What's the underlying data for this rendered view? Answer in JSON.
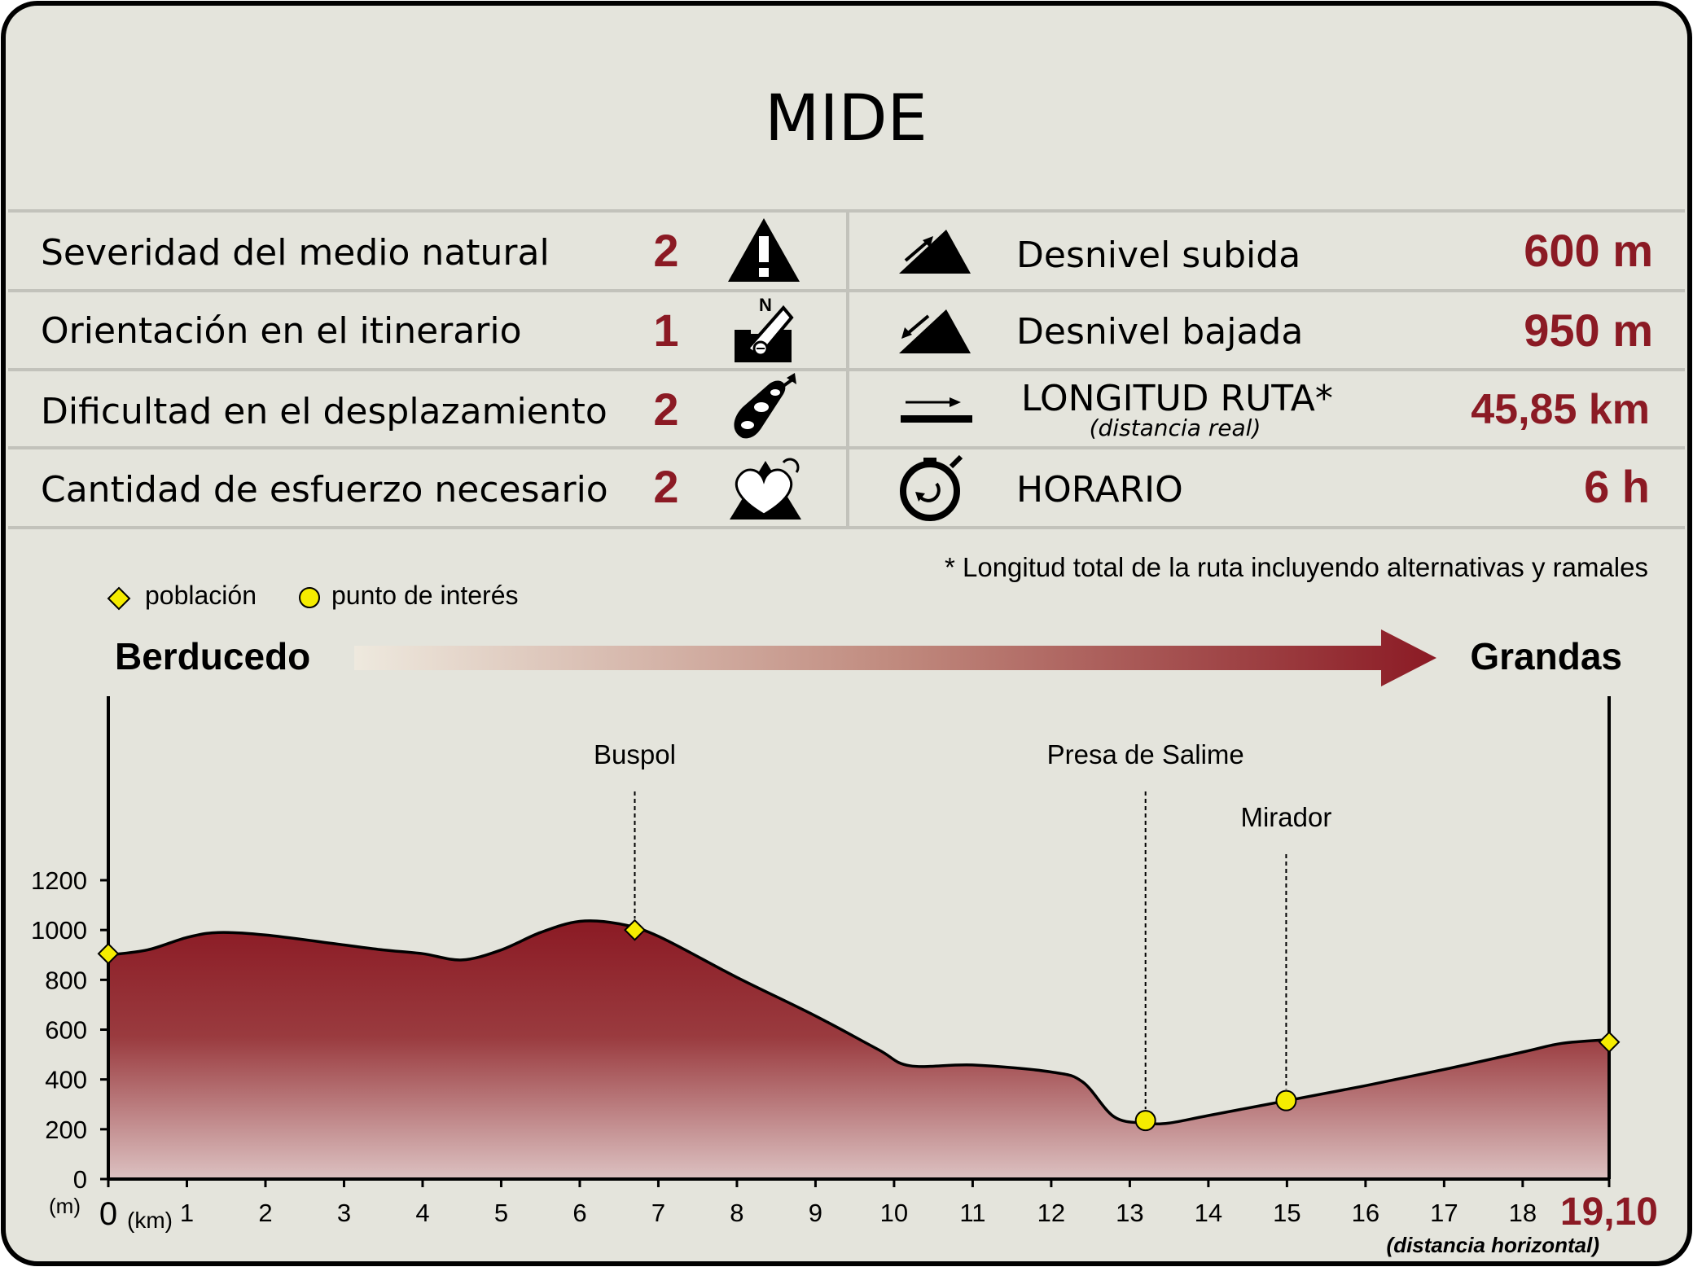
{
  "title": "MIDE",
  "mide_rows": [
    {
      "label": "Severidad del medio natural",
      "value": "2",
      "icon": "warning-icon"
    },
    {
      "label": "Orientación en el itinerario",
      "value": "1",
      "icon": "compass-icon"
    },
    {
      "label": "Dificultad en el desplazamiento",
      "value": "2",
      "icon": "footprint-icon"
    },
    {
      "label": "Cantidad de esfuerzo necesario",
      "value": "2",
      "icon": "heart-effort-icon"
    }
  ],
  "route_rows": [
    {
      "label": "Desnivel subida",
      "sublabel": "",
      "value": "600 m",
      "icon": "ascent-icon"
    },
    {
      "label": "Desnivel bajada",
      "sublabel": "",
      "value": "950 m",
      "icon": "descent-icon"
    },
    {
      "label": "LONGITUD RUTA*",
      "sublabel": "(distancia real)",
      "value": "45,85 km",
      "icon": "distance-icon"
    },
    {
      "label": "HORARIO",
      "sublabel": "",
      "value": "6 h",
      "icon": "stopwatch-icon"
    }
  ],
  "footnote": "* Longitud total de la ruta incluyendo alternativas y ramales",
  "legend": [
    {
      "label": "población",
      "marker": "diamond"
    },
    {
      "label": "punto de interés",
      "marker": "circle"
    }
  ],
  "route": {
    "start": "Berducedo",
    "end": "Grandas"
  },
  "colors": {
    "background": "#e4e4dc",
    "accent": "#8b1a24",
    "profile_top": "#8b1a24",
    "profile_bottom": "#dcc1c1",
    "marker": "#f5ec00",
    "divider": "#c2c2bb"
  },
  "chart_data": {
    "type": "area",
    "xlabel": "(km)",
    "ylabel": "(m)",
    "xlim": [
      0,
      19.1
    ],
    "ylim": [
      0,
      1200
    ],
    "x_ticks": [
      "0",
      "1",
      "2",
      "3",
      "4",
      "5",
      "6",
      "7",
      "8",
      "9",
      "10",
      "11",
      "12",
      "13",
      "14",
      "15",
      "16",
      "17",
      "18"
    ],
    "y_ticks": [
      "0",
      "200",
      "400",
      "600",
      "800",
      "1000",
      "1200"
    ],
    "total_distance_label": "19,10",
    "total_distance_caption": "(distancia horizontal)",
    "profile": [
      [
        0,
        900
      ],
      [
        0.5,
        920
      ],
      [
        1,
        970
      ],
      [
        1.4,
        990
      ],
      [
        2,
        980
      ],
      [
        3,
        940
      ],
      [
        3.5,
        920
      ],
      [
        4,
        905
      ],
      [
        4.5,
        880
      ],
      [
        5,
        920
      ],
      [
        5.5,
        990
      ],
      [
        6,
        1035
      ],
      [
        6.5,
        1025
      ],
      [
        7,
        975
      ],
      [
        8,
        810
      ],
      [
        9,
        655
      ],
      [
        9.8,
        520
      ],
      [
        10.2,
        455
      ],
      [
        11,
        458
      ],
      [
        12,
        430
      ],
      [
        12.4,
        390
      ],
      [
        12.8,
        250
      ],
      [
        13.2,
        225
      ],
      [
        13.5,
        225
      ],
      [
        14,
        255
      ],
      [
        15,
        315
      ],
      [
        16,
        375
      ],
      [
        17,
        440
      ],
      [
        18,
        510
      ],
      [
        18.5,
        545
      ],
      [
        19.1,
        560
      ]
    ],
    "points": [
      {
        "x": 0,
        "y": 905,
        "type": "población",
        "label": ""
      },
      {
        "x": 6.7,
        "y": 1000,
        "type": "población",
        "label": "Buspol"
      },
      {
        "x": 13.2,
        "y": 235,
        "type": "punto de interés",
        "label": "Presa de Salime"
      },
      {
        "x": 14.99,
        "y": 315,
        "type": "punto de interés",
        "label": "Mirador"
      },
      {
        "x": 19.1,
        "y": 550,
        "type": "población",
        "label": ""
      }
    ]
  }
}
